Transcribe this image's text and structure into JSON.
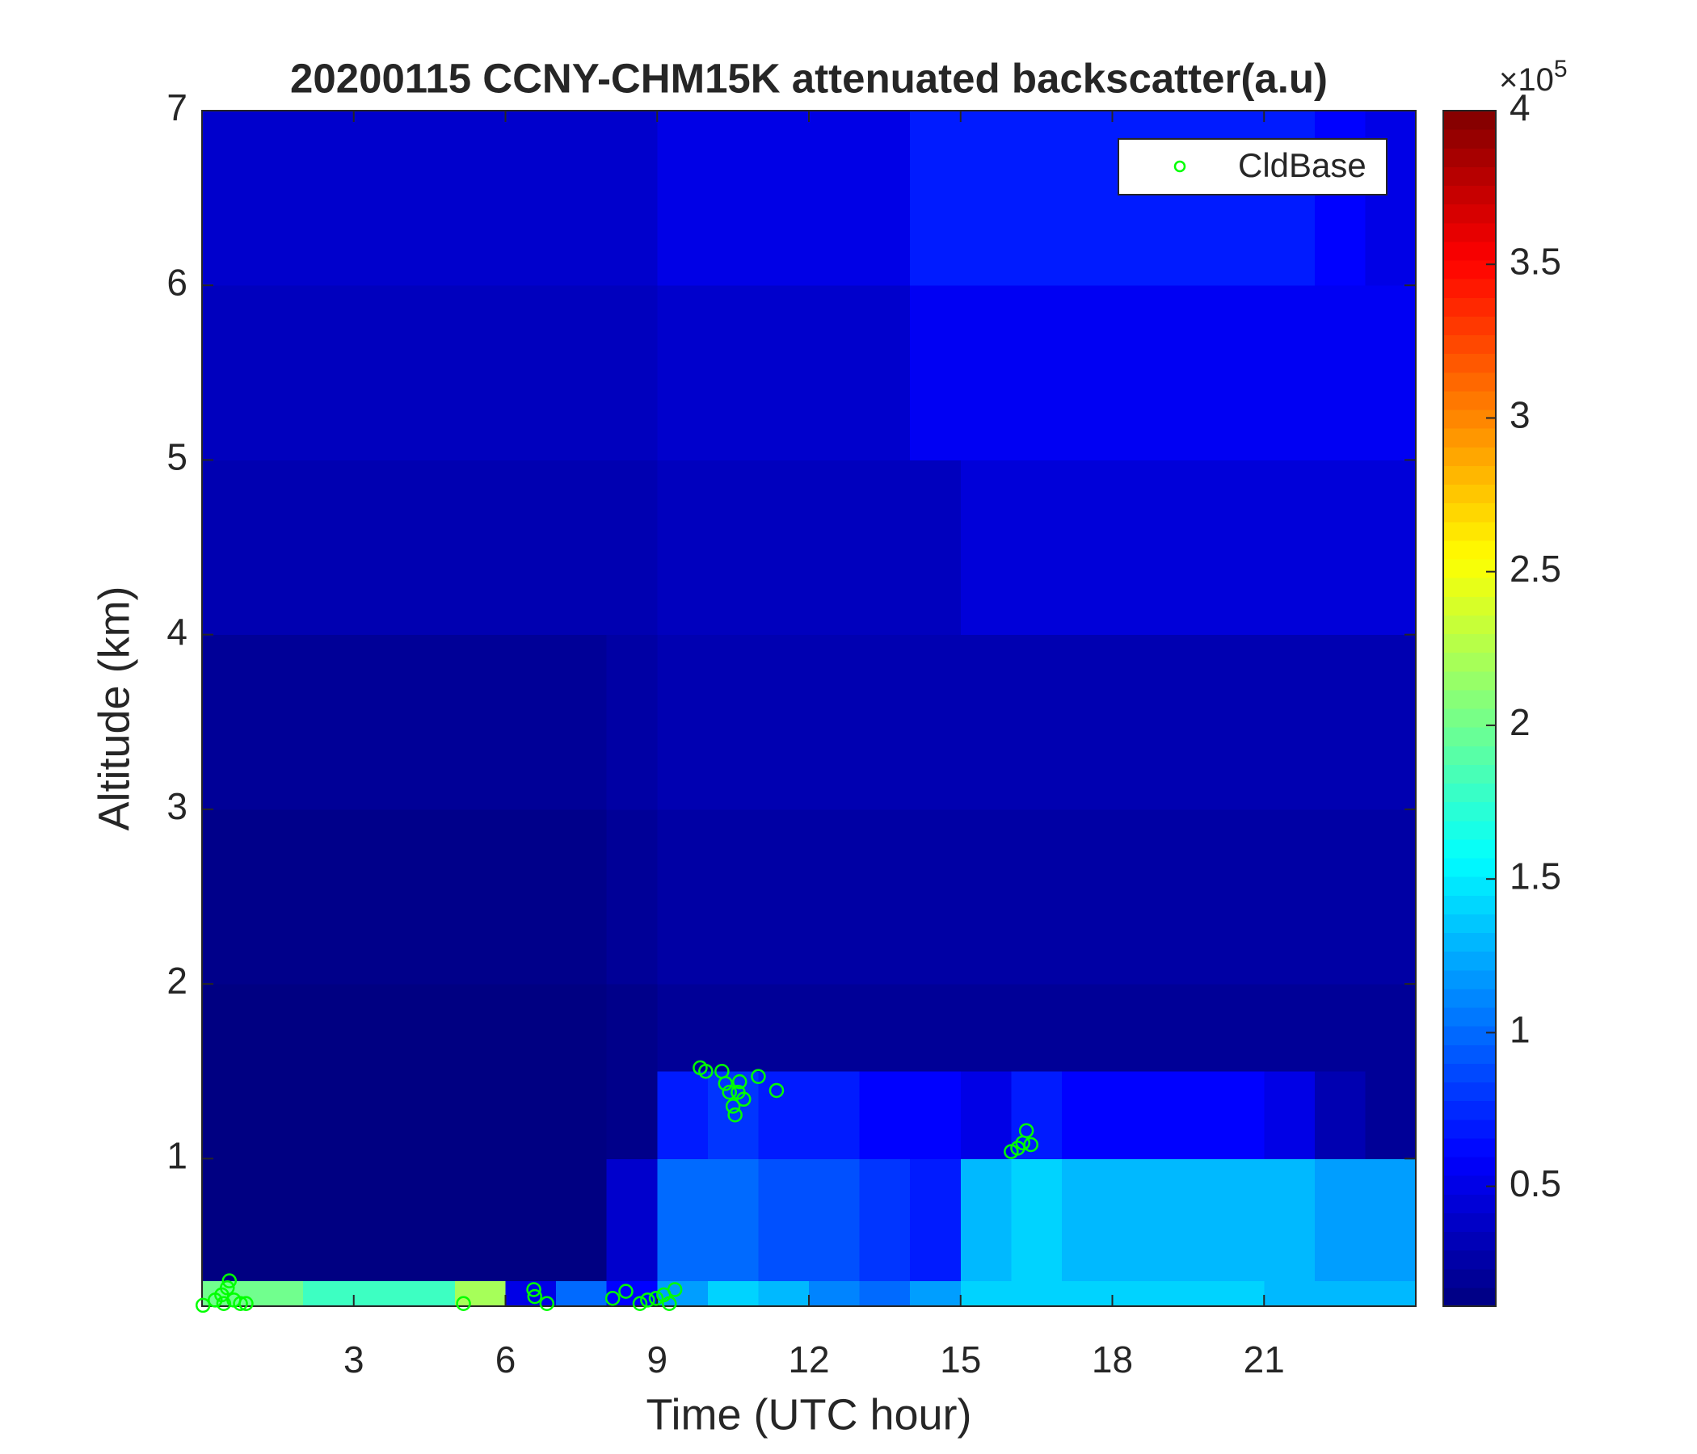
{
  "chart_data": {
    "type": "heatmap",
    "title": "20200115 CCNY-CHM15K attenuated backscatter(a.u)",
    "x_label": "Time (UTC hour)",
    "y_label": "Altitude (km)",
    "xlim": [
      0,
      24
    ],
    "xticks": [
      3,
      6,
      9,
      12,
      15,
      18,
      21
    ],
    "ylim": [
      0.155,
      7
    ],
    "yticks": [
      1,
      2,
      3,
      4,
      5,
      6,
      7
    ],
    "x_edges": [
      0,
      1,
      2,
      3,
      4,
      5,
      6,
      7,
      8,
      9,
      10,
      11,
      12,
      13,
      14,
      15,
      16,
      17,
      18,
      19,
      20,
      21,
      22,
      23,
      24
    ],
    "y_edges": [
      0.155,
      0.3,
      1.0,
      1.5,
      2,
      3,
      4,
      5,
      6,
      7
    ],
    "z": [
      [
        2.0,
        2.0,
        1.8,
        1.8,
        1.8,
        2.2,
        0.5,
        1.0,
        0.6,
        1.2,
        1.4,
        1.3,
        1.1,
        1.0,
        1.2,
        1.4,
        1.4,
        1.4,
        1.4,
        1.4,
        1.4,
        1.3,
        1.3,
        1.3
      ],
      [
        0.12,
        0.12,
        0.12,
        0.12,
        0.12,
        0.12,
        0.12,
        0.12,
        0.4,
        1.0,
        1.0,
        0.9,
        0.9,
        0.8,
        0.7,
        1.3,
        1.4,
        1.3,
        1.3,
        1.3,
        1.3,
        1.3,
        1.2,
        1.2
      ],
      [
        0.12,
        0.12,
        0.12,
        0.12,
        0.12,
        0.12,
        0.12,
        0.12,
        0.15,
        0.7,
        0.8,
        0.7,
        0.7,
        0.6,
        0.6,
        0.5,
        0.7,
        0.6,
        0.6,
        0.6,
        0.6,
        0.5,
        0.3,
        0.2
      ],
      [
        0.12,
        0.12,
        0.12,
        0.12,
        0.12,
        0.12,
        0.12,
        0.12,
        0.15,
        0.2,
        0.2,
        0.2,
        0.2,
        0.2,
        0.2,
        0.2,
        0.2,
        0.2,
        0.2,
        0.2,
        0.2,
        0.2,
        0.2,
        0.2
      ],
      [
        0.15,
        0.15,
        0.15,
        0.15,
        0.15,
        0.15,
        0.15,
        0.15,
        0.2,
        0.25,
        0.25,
        0.25,
        0.25,
        0.25,
        0.25,
        0.25,
        0.25,
        0.25,
        0.25,
        0.25,
        0.25,
        0.25,
        0.25,
        0.25
      ],
      [
        0.2,
        0.2,
        0.2,
        0.2,
        0.2,
        0.2,
        0.2,
        0.2,
        0.25,
        0.3,
        0.3,
        0.3,
        0.3,
        0.3,
        0.3,
        0.3,
        0.3,
        0.3,
        0.3,
        0.3,
        0.3,
        0.3,
        0.3,
        0.3
      ],
      [
        0.3,
        0.3,
        0.3,
        0.3,
        0.3,
        0.3,
        0.3,
        0.3,
        0.3,
        0.35,
        0.35,
        0.35,
        0.35,
        0.35,
        0.35,
        0.45,
        0.45,
        0.45,
        0.45,
        0.45,
        0.45,
        0.45,
        0.45,
        0.45
      ],
      [
        0.35,
        0.35,
        0.35,
        0.35,
        0.35,
        0.35,
        0.35,
        0.35,
        0.35,
        0.4,
        0.4,
        0.4,
        0.4,
        0.4,
        0.55,
        0.55,
        0.55,
        0.55,
        0.55,
        0.55,
        0.55,
        0.55,
        0.55,
        0.55
      ],
      [
        0.4,
        0.4,
        0.4,
        0.4,
        0.4,
        0.4,
        0.4,
        0.4,
        0.4,
        0.5,
        0.5,
        0.5,
        0.5,
        0.5,
        0.7,
        0.7,
        0.7,
        0.7,
        0.7,
        0.7,
        0.7,
        0.7,
        0.6,
        0.5
      ]
    ],
    "colorbar": {
      "lim": [
        0.11,
        4
      ],
      "ticks": [
        0.5,
        1,
        1.5,
        2,
        2.5,
        3,
        3.5,
        4
      ],
      "exponent_base": "×10",
      "exponent": "5"
    },
    "series": [
      {
        "name": "CldBase",
        "color": "#00ff00",
        "type": "scatter",
        "x": [
          0.02,
          0.26,
          0.39,
          0.5,
          0.54,
          0.63,
          0.76,
          0.87,
          0.43,
          5.17,
          6.56,
          6.58,
          6.82,
          8.12,
          8.38,
          8.66,
          8.81,
          8.98,
          9.13,
          9.24,
          9.35,
          9.85,
          9.96,
          10.28,
          10.35,
          10.43,
          10.5,
          10.54,
          10.63,
          10.71,
          10.6,
          11.0,
          11.36,
          16.0,
          16.13,
          16.23,
          16.3,
          16.39
        ],
        "y": [
          0.16,
          0.19,
          0.22,
          0.26,
          0.3,
          0.19,
          0.17,
          0.17,
          0.17,
          0.17,
          0.25,
          0.21,
          0.17,
          0.2,
          0.24,
          0.17,
          0.19,
          0.2,
          0.22,
          0.17,
          0.25,
          1.52,
          1.5,
          1.5,
          1.43,
          1.38,
          1.3,
          1.25,
          1.44,
          1.34,
          1.38,
          1.47,
          1.39,
          1.04,
          1.06,
          1.09,
          1.16,
          1.08
        ]
      }
    ],
    "legend": "upper right"
  }
}
